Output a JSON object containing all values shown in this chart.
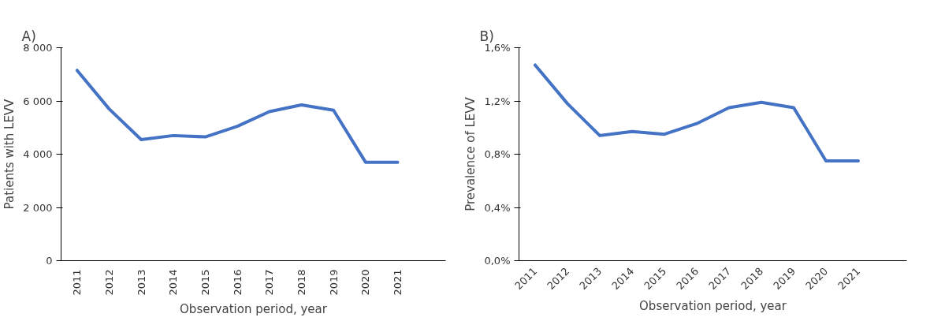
{
  "chart_data": [
    {
      "type": "line",
      "annotations": [
        "A)"
      ],
      "xlabel": "Observation period, year",
      "ylabel": "Patients with LEVV",
      "categories": [
        "2011",
        "2012",
        "2013",
        "2014",
        "2015",
        "2016",
        "2017",
        "2018",
        "2019",
        "2020",
        "2021",
        null
      ],
      "series": [
        {
          "color": "#4472c4",
          "values": [
            7150,
            5700,
            4550,
            4700,
            4650,
            5050,
            5600,
            5850,
            5650,
            3700,
            3700,
            null
          ]
        }
      ],
      "ylim": [
        0,
        8000
      ],
      "yticks": [
        0,
        {
          "value": 2000,
          "label": "2 000"
        },
        {
          "value": 4000,
          "label": "4 000"
        },
        {
          "value": 6000,
          "label": "6 000"
        },
        {
          "value": 8000,
          "label": "8 000"
        }
      ],
      "grid": false
    },
    {
      "type": "line",
      "annotations": [
        "B)"
      ],
      "xlabel": "Observation period, year",
      "ylabel": "Prevalence of LEVV",
      "categories": [
        "2011",
        "2012",
        "2013",
        "2014",
        "2015",
        "2016",
        "2017",
        "2018",
        "2019",
        "2020",
        "2021",
        null
      ],
      "series": [
        {
          "color": "#4472c4",
          "values": [
            1.47,
            1.18,
            0.94,
            0.97,
            0.95,
            1.03,
            1.15,
            1.19,
            1.15,
            0.75,
            0.75,
            null
          ]
        }
      ],
      "ylim": [
        0,
        1.6
      ],
      "yticks": [
        {
          "value": 0,
          "label": "0,0%"
        },
        {
          "value": 0.4,
          "label": "0,4%"
        },
        {
          "value": 0.8,
          "label": "0,8%"
        },
        {
          "value": 1.2,
          "label": "1,2%"
        },
        {
          "value": 1.6,
          "label": "1,6%"
        }
      ],
      "grid": false
    }
  ]
}
